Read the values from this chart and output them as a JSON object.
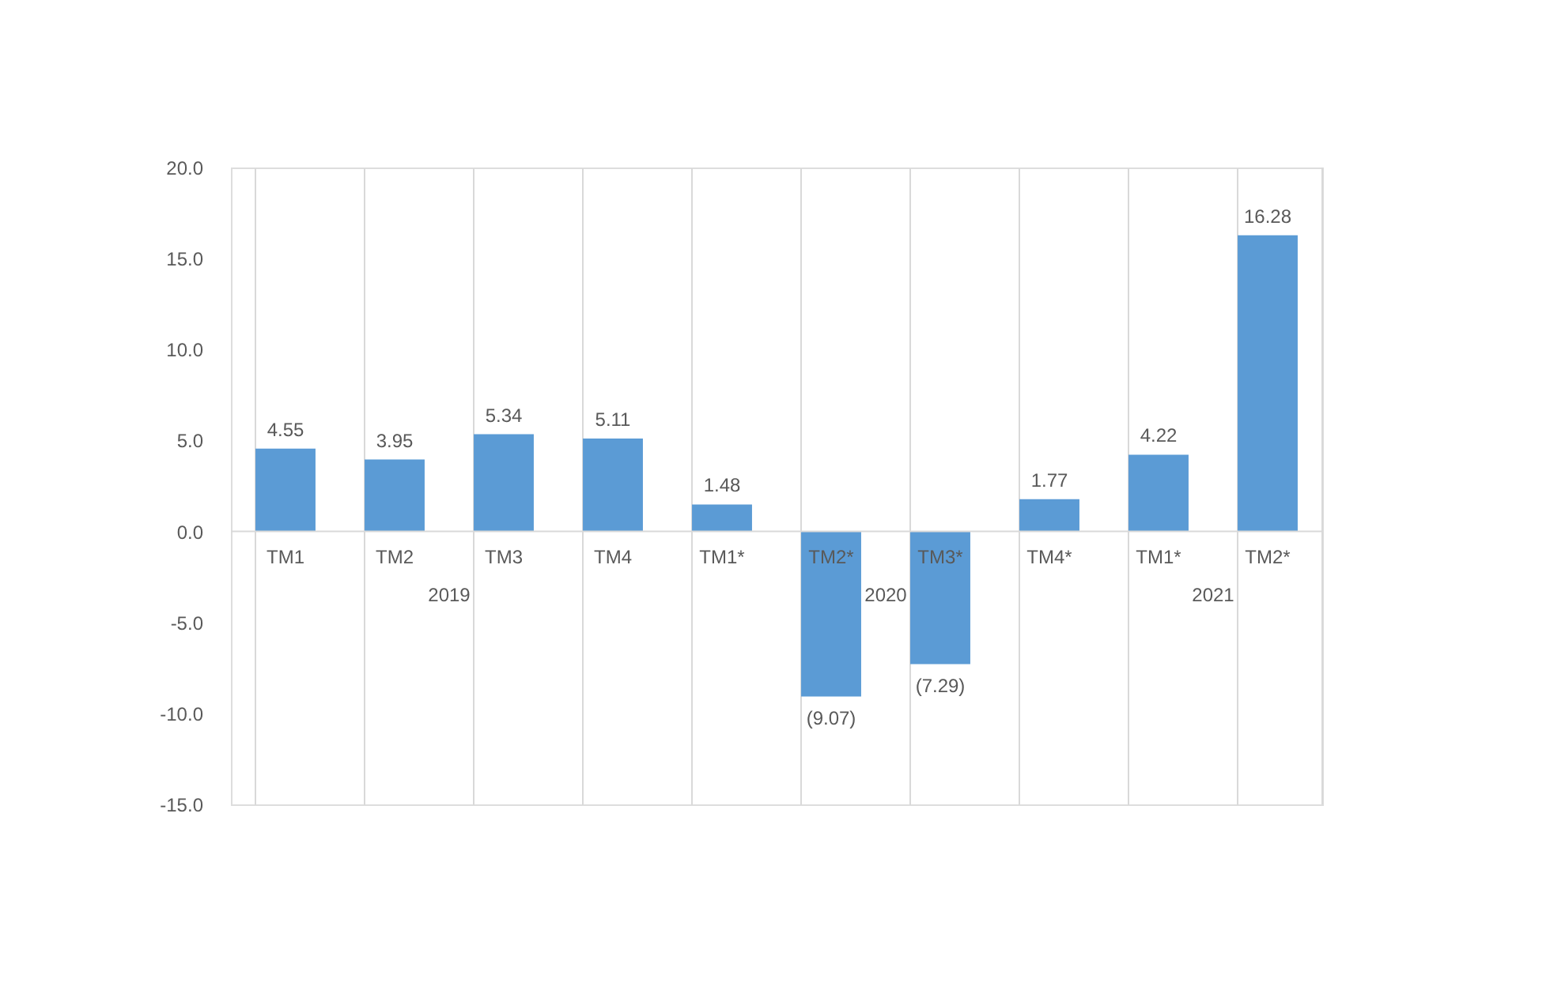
{
  "chart_data": {
    "type": "bar",
    "categories": [
      "TM1",
      "TM2",
      "TM3",
      "TM4",
      "TM1*",
      "TM2*",
      "TM3*",
      "TM4*",
      "TM1*",
      "TM2*"
    ],
    "values": [
      4.55,
      3.95,
      5.34,
      5.11,
      1.48,
      -9.07,
      -7.29,
      1.77,
      4.22,
      16.28
    ],
    "value_labels": [
      "4.55",
      "3.95",
      "5.34",
      "5.11",
      "1.48",
      "(9.07)",
      "(7.29)",
      "1.77",
      "4.22",
      "16.28"
    ],
    "color": "#5b9bd5",
    "ylim": [
      -15,
      20
    ],
    "yticks": [
      {
        "value": -15,
        "label": "-15.0"
      },
      {
        "value": -10,
        "label": "-10.0"
      },
      {
        "value": -5,
        "label": "-5.0"
      },
      {
        "value": 0,
        "label": "0.0"
      },
      {
        "value": 5,
        "label": "5.0"
      },
      {
        "value": 10,
        "label": "10.0"
      },
      {
        "value": 15,
        "label": "15.0"
      },
      {
        "value": 20,
        "label": "20.0"
      }
    ],
    "grid": "x",
    "annotations": [
      "2019",
      "2020",
      "2021"
    ]
  }
}
